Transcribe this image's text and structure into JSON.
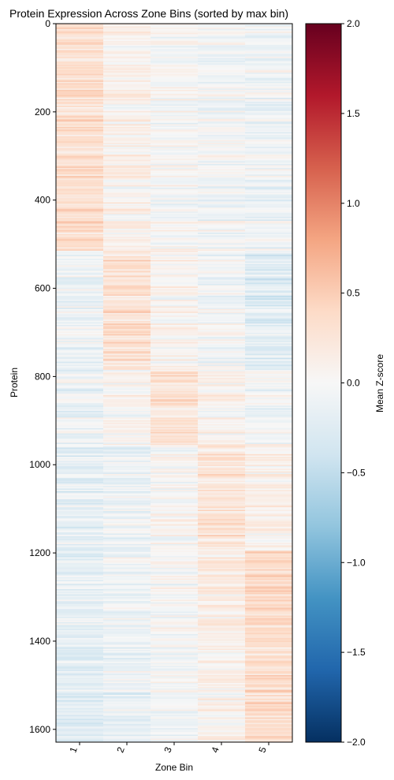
{
  "chart_data": {
    "type": "heatmap",
    "title": "Protein Expression Across Zone Bins (sorted by max bin)",
    "xlabel": "Zone Bin",
    "ylabel": "Protein",
    "x_categories": [
      "1",
      "2",
      "3",
      "4",
      "5"
    ],
    "y_range": [
      0,
      1629
    ],
    "y_ticks": [
      "0",
      "200",
      "400",
      "600",
      "800",
      "1000",
      "1200",
      "1400",
      "1600"
    ],
    "row_count": 1629,
    "sort_order": "sorted by max bin",
    "blocks": [
      {
        "max_bin": "1",
        "rows": [
          0,
          515
        ],
        "profile": [
          0.32,
          0.08,
          -0.02,
          -0.06,
          -0.1
        ]
      },
      {
        "max_bin": "2",
        "rows": [
          515,
          785
        ],
        "profile": [
          -0.1,
          0.3,
          0.06,
          -0.06,
          -0.22
        ]
      },
      {
        "max_bin": "3",
        "rows": [
          785,
          955
        ],
        "profile": [
          -0.12,
          0.04,
          0.26,
          0.06,
          -0.06
        ]
      },
      {
        "max_bin": "4",
        "rows": [
          955,
          1195
        ],
        "profile": [
          -0.18,
          -0.1,
          0.02,
          0.26,
          0.1
        ]
      },
      {
        "max_bin": "5",
        "rows": [
          1195,
          1629
        ],
        "profile": [
          -0.22,
          -0.12,
          -0.04,
          0.1,
          0.34
        ]
      }
    ],
    "colorbar": {
      "label": "Mean Z-score",
      "colormap": "RdBu_r",
      "vmin": -2.0,
      "vmax": 2.0,
      "ticks": [
        "−2.0",
        "−1.5",
        "−1.0",
        "−0.5",
        "0.0",
        "0.5",
        "1.0",
        "1.5",
        "2.0"
      ],
      "colors": [
        "#053061",
        "#2166ac",
        "#4393c3",
        "#92c5de",
        "#d1e5f0",
        "#f7f7f7",
        "#fddbc7",
        "#f4a582",
        "#d6604d",
        "#b2182b",
        "#67001f"
      ]
    },
    "grid": false,
    "legend": "colorbar right"
  }
}
